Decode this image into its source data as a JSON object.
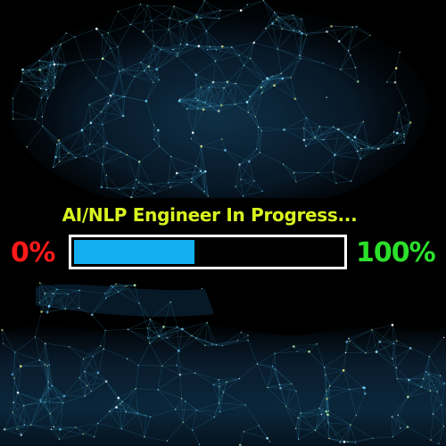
{
  "title": "AI/NLP Engineer In Progress...",
  "progress": {
    "min_label": "0%",
    "max_label": "100%",
    "value_fraction": 0.45
  },
  "colors": {
    "title": "#d8f41f",
    "min_label": "#ff1a1a",
    "max_label": "#2be02b",
    "bar_fill": "#12aef0",
    "bar_border": "#ffffff"
  },
  "background": {
    "description_icon": "neural-network-mesh-image"
  }
}
